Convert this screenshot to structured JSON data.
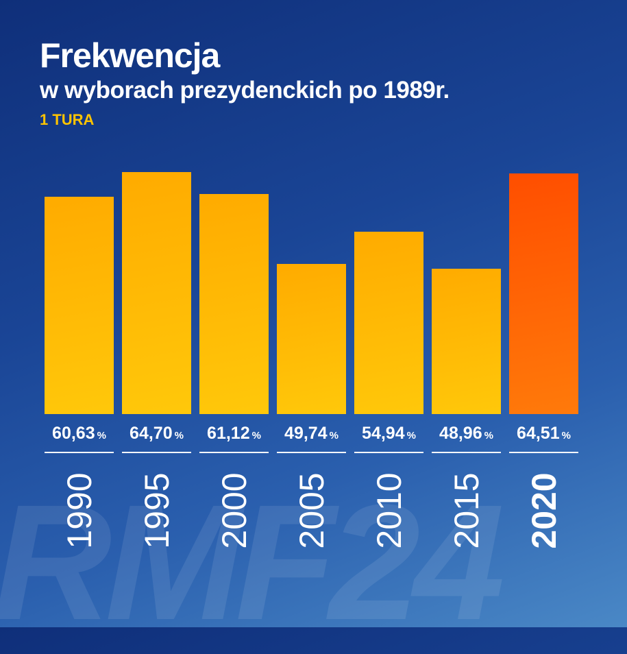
{
  "header": {
    "title": "Frekwencja",
    "subtitle": "w wyborach prezydenckich po 1989r.",
    "round": "1 TURA"
  },
  "watermark": "RMF24",
  "chart_data": {
    "type": "bar",
    "title": "Frekwencja",
    "subtitle": "w wyborach prezydenckich po 1989r.",
    "categories": [
      "1990",
      "1995",
      "2000",
      "2005",
      "2010",
      "2015",
      "2020"
    ],
    "values": [
      60.63,
      64.7,
      61.12,
      49.74,
      54.94,
      48.96,
      64.51
    ],
    "labels": [
      "60,63",
      "64,70",
      "61,12",
      "49,74",
      "54,94",
      "48,96",
      "64,51"
    ],
    "unit": "%",
    "highlight": "2020",
    "ylim": [
      25.3,
      70
    ],
    "grid": false,
    "colors": {
      "bar": "#ffb800",
      "highlight": "#ff6000",
      "background": "#1a4596"
    }
  }
}
